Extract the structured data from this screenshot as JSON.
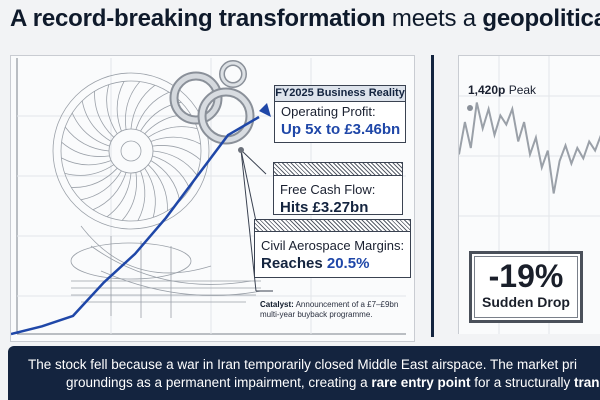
{
  "title": {
    "bold1": "A record-breaking transformation",
    "normal": " meets a ",
    "bold2": "geopolitical"
  },
  "business_reality": {
    "header": "FY2025 Business Reality",
    "operating_profit_label": "Operating Profit:",
    "operating_profit_value": "Up 5x to £3.46bn",
    "free_cash_flow_label": "Free Cash Flow:",
    "free_cash_flow_value": "Hits £3.27bn",
    "margins_label": "Civil Aerospace Margins:",
    "margins_value_prefix": "Reaches ",
    "margins_value": "20.5%"
  },
  "catalyst": {
    "label": "Catalyst:",
    "text": " Announcement of a £7–£9bn multi-year buyback programme."
  },
  "stock": {
    "peak_value": "1,420p",
    "peak_label": " Peak",
    "drop_value": "-19%",
    "drop_label": "Sudden Drop"
  },
  "banner": {
    "line1": "The stock fell because a war in Iran temporarily closed Middle East airspace. The market pri",
    "line2_pre": "groundings as a permanent impairment, creating a ",
    "line2_bold1": "rare entry point",
    "line2_mid": " for a structurally ",
    "line2_bold2": "trans"
  },
  "colors": {
    "navy": "#14243f",
    "accent_blue": "#1f47a8",
    "background": "#f2f3f5"
  },
  "icons": {
    "arrow": "arrow-icon",
    "engine": "turbine-engine-illustration",
    "rings": "chain-links-illustration"
  },
  "chart_data": [
    {
      "type": "line",
      "series": [
        {
          "values": [
            0.0,
            0.3,
            0.7,
            2.0,
            3.1,
            4.5,
            6.1,
            7.7,
            8.4
          ]
        }
      ]
    },
    {
      "type": "line",
      "series": [
        {
          "values": [
            0.55,
            0.8,
            0.6,
            0.95,
            0.75,
            0.9,
            0.7,
            0.85,
            0.78,
            0.9,
            0.65,
            0.8,
            0.55,
            0.68,
            0.45,
            0.58,
            0.25,
            0.5,
            0.62,
            0.48,
            0.6,
            0.52,
            0.65,
            0.58,
            0.7
          ]
        }
      ],
      "annotations": [
        "1,420p Peak"
      ]
    }
  ]
}
